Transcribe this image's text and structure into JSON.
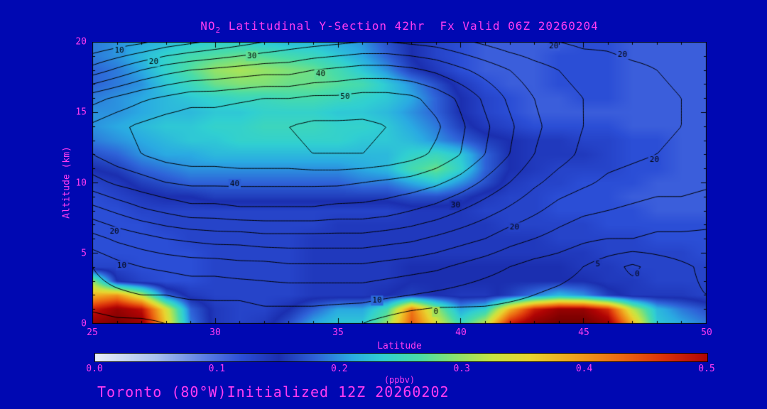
{
  "colors": {
    "background": "#0008B2",
    "text": "#FF3CF2",
    "contour": "#000000",
    "frame": "#000000"
  },
  "title": {
    "species": "NO",
    "species_sub": "2",
    "rest": " Latitudinal Y-Section 42hr  Fx Valid 06Z 20260204"
  },
  "axes": {
    "x": {
      "label": "Latitude",
      "min": 25,
      "max": 50,
      "major_ticks": [
        25,
        30,
        35,
        40,
        45,
        50
      ],
      "minor_step": 1
    },
    "y": {
      "label": "Altitude (km)",
      "min": 0,
      "max": 20,
      "major_ticks": [
        0,
        5,
        10,
        15,
        20
      ],
      "minor_step": 1
    }
  },
  "colorbar": {
    "label": "(ppbv)",
    "min": 0.0,
    "max": 0.5,
    "tick_labels": [
      "0.0",
      "0.1",
      "0.2",
      "0.3",
      "0.4",
      "0.5"
    ]
  },
  "footer": {
    "text": "Toronto (80°W)Initialized 12Z 20260202"
  },
  "chart_data": {
    "type": "heatmap",
    "title": "NO2 Latitudinal Y-Section 42hr Fx Valid 06Z 20260204",
    "xlabel": "Latitude",
    "ylabel": "Altitude (km)",
    "fill_units": "ppbv",
    "xlim": [
      25,
      50
    ],
    "ylim": [
      0,
      20
    ],
    "lats": [
      25,
      26,
      27,
      28,
      29,
      30,
      31,
      32,
      33,
      34,
      35,
      36,
      37,
      38,
      39,
      40,
      41,
      42,
      43,
      44,
      45,
      46,
      47,
      48,
      49,
      50
    ],
    "alts": [
      0,
      1,
      2,
      3,
      4,
      5,
      6,
      7,
      8,
      9,
      10,
      11,
      12,
      13,
      14,
      15,
      16,
      17,
      18,
      19,
      20
    ],
    "fill_values": [
      [
        0.52,
        0.54,
        0.52,
        0.36,
        0.19,
        0.14,
        0.13,
        0.14,
        0.17,
        0.21,
        0.23,
        0.23,
        0.3,
        0.44,
        0.34,
        0.25,
        0.32,
        0.48,
        0.53,
        0.55,
        0.55,
        0.52,
        0.38,
        0.23,
        0.21,
        0.19
      ],
      [
        0.48,
        0.52,
        0.49,
        0.34,
        0.18,
        0.14,
        0.13,
        0.13,
        0.15,
        0.18,
        0.21,
        0.21,
        0.26,
        0.42,
        0.3,
        0.21,
        0.24,
        0.38,
        0.48,
        0.52,
        0.52,
        0.47,
        0.32,
        0.22,
        0.19,
        0.17
      ],
      [
        0.38,
        0.4,
        0.32,
        0.18,
        0.14,
        0.13,
        0.13,
        0.13,
        0.13,
        0.14,
        0.14,
        0.14,
        0.15,
        0.16,
        0.15,
        0.14,
        0.14,
        0.16,
        0.19,
        0.22,
        0.2,
        0.16,
        0.14,
        0.14,
        0.14,
        0.13
      ],
      [
        0.3,
        0.15,
        0.13,
        0.12,
        0.12,
        0.13,
        0.13,
        0.13,
        0.13,
        0.14,
        0.14,
        0.14,
        0.14,
        0.15,
        0.15,
        0.15,
        0.15,
        0.15,
        0.15,
        0.15,
        0.15,
        0.14,
        0.14,
        0.13,
        0.13,
        0.13
      ],
      [
        0.13,
        0.13,
        0.12,
        0.12,
        0.12,
        0.13,
        0.13,
        0.13,
        0.13,
        0.14,
        0.14,
        0.14,
        0.14,
        0.15,
        0.15,
        0.15,
        0.15,
        0.15,
        0.15,
        0.15,
        0.14,
        0.14,
        0.13,
        0.13,
        0.13,
        0.13
      ],
      [
        0.12,
        0.12,
        0.12,
        0.12,
        0.12,
        0.13,
        0.13,
        0.13,
        0.13,
        0.14,
        0.14,
        0.14,
        0.14,
        0.14,
        0.14,
        0.14,
        0.14,
        0.14,
        0.14,
        0.14,
        0.14,
        0.13,
        0.13,
        0.13,
        0.13,
        0.12
      ],
      [
        0.12,
        0.12,
        0.12,
        0.12,
        0.13,
        0.13,
        0.13,
        0.13,
        0.13,
        0.14,
        0.14,
        0.14,
        0.14,
        0.14,
        0.14,
        0.14,
        0.14,
        0.14,
        0.14,
        0.13,
        0.13,
        0.13,
        0.13,
        0.12,
        0.12,
        0.12
      ],
      [
        0.12,
        0.12,
        0.12,
        0.13,
        0.13,
        0.13,
        0.13,
        0.13,
        0.13,
        0.13,
        0.14,
        0.14,
        0.14,
        0.14,
        0.14,
        0.14,
        0.14,
        0.13,
        0.13,
        0.13,
        0.13,
        0.12,
        0.12,
        0.12,
        0.12,
        0.12
      ],
      [
        0.12,
        0.12,
        0.13,
        0.13,
        0.13,
        0.13,
        0.13,
        0.13,
        0.13,
        0.13,
        0.13,
        0.13,
        0.13,
        0.14,
        0.14,
        0.14,
        0.13,
        0.13,
        0.13,
        0.12,
        0.12,
        0.12,
        0.12,
        0.11,
        0.11,
        0.11
      ],
      [
        0.12,
        0.13,
        0.14,
        0.15,
        0.15,
        0.16,
        0.16,
        0.16,
        0.16,
        0.16,
        0.16,
        0.16,
        0.16,
        0.17,
        0.17,
        0.16,
        0.14,
        0.13,
        0.13,
        0.12,
        0.12,
        0.12,
        0.11,
        0.11,
        0.11,
        0.11
      ],
      [
        0.13,
        0.14,
        0.16,
        0.17,
        0.18,
        0.18,
        0.18,
        0.18,
        0.18,
        0.18,
        0.18,
        0.19,
        0.19,
        0.21,
        0.23,
        0.2,
        0.17,
        0.14,
        0.13,
        0.13,
        0.12,
        0.12,
        0.12,
        0.11,
        0.11,
        0.11
      ],
      [
        0.15,
        0.16,
        0.18,
        0.19,
        0.2,
        0.2,
        0.2,
        0.2,
        0.2,
        0.2,
        0.2,
        0.21,
        0.22,
        0.26,
        0.28,
        0.24,
        0.18,
        0.15,
        0.14,
        0.13,
        0.13,
        0.13,
        0.12,
        0.12,
        0.11,
        0.11
      ],
      [
        0.17,
        0.18,
        0.2,
        0.21,
        0.21,
        0.22,
        0.22,
        0.22,
        0.22,
        0.22,
        0.22,
        0.22,
        0.22,
        0.24,
        0.25,
        0.23,
        0.18,
        0.15,
        0.14,
        0.14,
        0.14,
        0.13,
        0.12,
        0.12,
        0.11,
        0.11
      ],
      [
        0.19,
        0.2,
        0.21,
        0.22,
        0.23,
        0.23,
        0.24,
        0.24,
        0.24,
        0.24,
        0.24,
        0.23,
        0.23,
        0.22,
        0.2,
        0.18,
        0.16,
        0.15,
        0.14,
        0.14,
        0.13,
        0.13,
        0.12,
        0.12,
        0.11,
        0.11
      ],
      [
        0.2,
        0.21,
        0.22,
        0.23,
        0.23,
        0.24,
        0.24,
        0.25,
        0.25,
        0.25,
        0.24,
        0.24,
        0.23,
        0.21,
        0.19,
        0.16,
        0.14,
        0.13,
        0.12,
        0.12,
        0.12,
        0.12,
        0.11,
        0.11,
        0.11,
        0.11
      ],
      [
        0.2,
        0.2,
        0.21,
        0.22,
        0.22,
        0.23,
        0.23,
        0.24,
        0.24,
        0.24,
        0.23,
        0.23,
        0.22,
        0.2,
        0.18,
        0.15,
        0.13,
        0.12,
        0.11,
        0.11,
        0.11,
        0.11,
        0.11,
        0.11,
        0.11,
        0.11
      ],
      [
        0.19,
        0.2,
        0.21,
        0.22,
        0.23,
        0.24,
        0.25,
        0.25,
        0.26,
        0.26,
        0.25,
        0.24,
        0.23,
        0.21,
        0.18,
        0.15,
        0.13,
        0.12,
        0.11,
        0.11,
        0.12,
        0.12,
        0.11,
        0.11,
        0.11,
        0.11
      ],
      [
        0.18,
        0.19,
        0.2,
        0.23,
        0.25,
        0.28,
        0.29,
        0.29,
        0.28,
        0.28,
        0.27,
        0.26,
        0.23,
        0.2,
        0.17,
        0.14,
        0.12,
        0.11,
        0.11,
        0.12,
        0.12,
        0.12,
        0.11,
        0.11,
        0.11,
        0.11
      ],
      [
        0.18,
        0.19,
        0.21,
        0.24,
        0.27,
        0.3,
        0.31,
        0.3,
        0.29,
        0.28,
        0.26,
        0.23,
        0.2,
        0.16,
        0.14,
        0.12,
        0.11,
        0.11,
        0.11,
        0.12,
        0.12,
        0.12,
        0.11,
        0.11,
        0.11,
        0.11
      ],
      [
        0.19,
        0.2,
        0.22,
        0.24,
        0.26,
        0.27,
        0.28,
        0.27,
        0.26,
        0.25,
        0.23,
        0.21,
        0.18,
        0.15,
        0.13,
        0.12,
        0.11,
        0.11,
        0.11,
        0.12,
        0.12,
        0.12,
        0.11,
        0.11,
        0.11,
        0.11
      ],
      [
        0.19,
        0.2,
        0.21,
        0.22,
        0.23,
        0.24,
        0.24,
        0.23,
        0.22,
        0.22,
        0.21,
        0.2,
        0.17,
        0.15,
        0.13,
        0.12,
        0.11,
        0.11,
        0.11,
        0.11,
        0.12,
        0.12,
        0.11,
        0.11,
        0.11,
        0.11
      ]
    ],
    "colormap_stops": [
      [
        0.0,
        "#e9eef8"
      ],
      [
        0.05,
        "#a8c0ee"
      ],
      [
        0.09,
        "#5a7de4"
      ],
      [
        0.12,
        "#2b4ed6"
      ],
      [
        0.15,
        "#1b2fb0"
      ],
      [
        0.18,
        "#2e62d8"
      ],
      [
        0.21,
        "#2aaae2"
      ],
      [
        0.235,
        "#30cfd2"
      ],
      [
        0.265,
        "#49dca8"
      ],
      [
        0.295,
        "#8ae26e"
      ],
      [
        0.325,
        "#c8e442"
      ],
      [
        0.355,
        "#e8d430"
      ],
      [
        0.39,
        "#f0a41e"
      ],
      [
        0.43,
        "#ec6812"
      ],
      [
        0.465,
        "#da300a"
      ],
      [
        0.5,
        "#b00404"
      ],
      [
        0.55,
        "#700000"
      ]
    ],
    "contours": {
      "alts": [
        0,
        2,
        4,
        6,
        8,
        10,
        12,
        14,
        16,
        18,
        20
      ],
      "levels": [
        0,
        5,
        10,
        15,
        20,
        25,
        30,
        35,
        40,
        45,
        50,
        55
      ],
      "values": [
        [
          3,
          4,
          4,
          5,
          5,
          6,
          6,
          7,
          7,
          7,
          6,
          5,
          3,
          1,
          0,
          1,
          2,
          2,
          2,
          2,
          2,
          1,
          1,
          2,
          3,
          3
        ],
        [
          8,
          9,
          10,
          10,
          11,
          11,
          11,
          12,
          12,
          12,
          12,
          12,
          11,
          10,
          9,
          8,
          7,
          6,
          5,
          4,
          3,
          2,
          2,
          3,
          4,
          5
        ],
        [
          10,
          13,
          15,
          16,
          17,
          17,
          18,
          18,
          19,
          19,
          19,
          19,
          18,
          17,
          16,
          14,
          12,
          10,
          8,
          7,
          5,
          2,
          -1,
          2,
          4,
          6
        ],
        [
          18,
          21,
          23,
          25,
          26,
          27,
          27,
          28,
          28,
          28,
          28,
          28,
          27,
          26,
          24,
          22,
          20,
          17,
          15,
          13,
          11,
          10,
          10,
          9,
          9,
          9
        ],
        [
          28,
          31,
          34,
          36,
          38,
          38,
          39,
          39,
          39,
          39,
          38,
          38,
          37,
          35,
          33,
          30,
          27,
          24,
          21,
          18,
          16,
          15,
          14,
          13,
          13,
          12
        ],
        [
          38,
          41,
          43,
          45,
          46,
          46,
          46,
          46,
          46,
          46,
          46,
          45,
          44,
          43,
          41,
          38,
          34,
          30,
          26,
          23,
          21,
          19,
          18,
          17,
          17,
          16
        ],
        [
          45,
          48,
          50,
          52,
          53,
          53,
          54,
          54,
          54,
          55,
          55,
          55,
          54,
          52,
          49,
          45,
          40,
          35,
          30,
          27,
          24,
          22,
          21,
          20,
          19,
          18
        ],
        [
          46,
          49,
          51,
          53,
          54,
          54,
          55,
          55,
          55,
          56,
          56,
          56,
          55,
          54,
          51,
          46,
          41,
          36,
          31,
          28,
          25,
          23,
          22,
          21,
          20,
          19
        ],
        [
          38,
          41,
          44,
          46,
          48,
          48,
          49,
          50,
          50,
          51,
          51,
          52,
          52,
          51,
          48,
          44,
          39,
          34,
          30,
          27,
          25,
          23,
          22,
          21,
          20,
          19
        ],
        [
          22,
          26,
          30,
          33,
          35,
          36,
          37,
          38,
          38,
          40,
          41,
          42,
          42,
          41,
          39,
          36,
          33,
          30,
          27,
          25,
          23,
          22,
          21,
          20,
          19,
          18
        ],
        [
          10,
          12,
          14,
          17,
          19,
          21,
          23,
          25,
          27,
          28,
          29,
          30,
          30,
          29,
          28,
          26,
          24,
          22,
          21,
          20,
          19,
          19,
          18,
          18,
          17,
          17
        ]
      ],
      "labels": [
        {
          "text": "10",
          "lat": 26.1,
          "alt": 19.4
        },
        {
          "text": "20",
          "lat": 27.5,
          "alt": 18.6
        },
        {
          "text": "30",
          "lat": 31.5,
          "alt": 19.0
        },
        {
          "text": "40",
          "lat": 34.3,
          "alt": 17.7
        },
        {
          "text": "50",
          "lat": 35.3,
          "alt": 16.1
        },
        {
          "text": "20",
          "lat": 43.8,
          "alt": 19.7
        },
        {
          "text": "20",
          "lat": 46.6,
          "alt": 19.1
        },
        {
          "text": "20",
          "lat": 47.9,
          "alt": 11.6
        },
        {
          "text": "40",
          "lat": 30.8,
          "alt": 9.9
        },
        {
          "text": "30",
          "lat": 39.8,
          "alt": 8.4
        },
        {
          "text": "20",
          "lat": 25.9,
          "alt": 6.5
        },
        {
          "text": "10",
          "lat": 26.2,
          "alt": 4.1
        },
        {
          "text": "20",
          "lat": 42.2,
          "alt": 6.8
        },
        {
          "text": "10",
          "lat": 36.6,
          "alt": 1.6
        },
        {
          "text": "0",
          "lat": 39.0,
          "alt": 0.8
        },
        {
          "text": "5",
          "lat": 45.6,
          "alt": 4.2
        },
        {
          "text": "0",
          "lat": 47.2,
          "alt": 3.5
        }
      ]
    }
  }
}
